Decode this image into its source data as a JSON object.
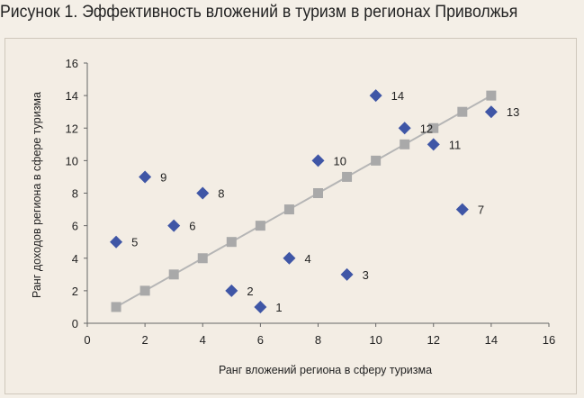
{
  "title": "Рисунок 1. Эффективность вложений в туризм в регионах Приволжья",
  "chart_data": {
    "type": "scatter",
    "xlabel": "Ранг вложений региона в сферу туризма",
    "ylabel": "Ранг доходов региона в сфере туризма",
    "xlim": [
      0,
      16
    ],
    "ylim": [
      0,
      16
    ],
    "xticks": [
      0,
      2,
      4,
      6,
      8,
      10,
      12,
      14,
      16
    ],
    "yticks": [
      0,
      2,
      4,
      6,
      8,
      10,
      12,
      14,
      16
    ],
    "grid": false,
    "series": [
      {
        "marker": "diamond",
        "color": "#3f56a6",
        "points": [
          {
            "x": 6,
            "y": 1,
            "label": "1"
          },
          {
            "x": 5,
            "y": 2,
            "label": "2"
          },
          {
            "x": 9,
            "y": 3,
            "label": "3"
          },
          {
            "x": 7,
            "y": 4,
            "label": "4"
          },
          {
            "x": 1,
            "y": 5,
            "label": "5"
          },
          {
            "x": 3,
            "y": 6,
            "label": "6"
          },
          {
            "x": 13,
            "y": 7,
            "label": "7"
          },
          {
            "x": 4,
            "y": 8,
            "label": "8"
          },
          {
            "x": 2,
            "y": 9,
            "label": "9"
          },
          {
            "x": 8,
            "y": 10,
            "label": "10"
          },
          {
            "x": 12,
            "y": 11,
            "label": "11"
          },
          {
            "x": 11,
            "y": 12,
            "label": "12"
          },
          {
            "x": 14,
            "y": 13,
            "label": "13"
          },
          {
            "x": 10,
            "y": 14,
            "label": "14"
          }
        ]
      },
      {
        "marker": "square",
        "line": true,
        "color": "#a9a9a9",
        "points": [
          {
            "x": 1,
            "y": 1
          },
          {
            "x": 2,
            "y": 2
          },
          {
            "x": 3,
            "y": 3
          },
          {
            "x": 4,
            "y": 4
          },
          {
            "x": 5,
            "y": 5
          },
          {
            "x": 6,
            "y": 6
          },
          {
            "x": 7,
            "y": 7
          },
          {
            "x": 8,
            "y": 8
          },
          {
            "x": 9,
            "y": 9
          },
          {
            "x": 10,
            "y": 10
          },
          {
            "x": 11,
            "y": 11
          },
          {
            "x": 12,
            "y": 12
          },
          {
            "x": 13,
            "y": 13
          },
          {
            "x": 14,
            "y": 14
          }
        ]
      }
    ]
  }
}
